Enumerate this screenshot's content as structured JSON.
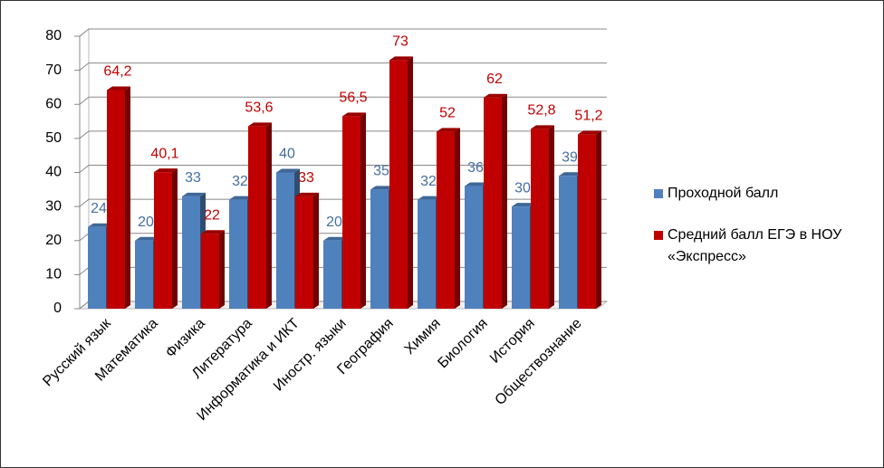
{
  "chart_data": {
    "type": "bar3d",
    "categories": [
      "Русский язык",
      "Математика",
      "Физика",
      "Литература",
      "Информатика и ИКТ",
      "Иностр. языки",
      "География",
      "Химия",
      "Биология",
      "История",
      "Обществознание"
    ],
    "series": [
      {
        "name": "Проходной балл",
        "color": "#4f81bd",
        "values": [
          24,
          20,
          33,
          32,
          40,
          20,
          35,
          32,
          36,
          30,
          39
        ]
      },
      {
        "name": "Средний балл ЕГЭ в НОУ «Экспресс»",
        "color": "#c00000",
        "values": [
          64.2,
          40.1,
          22,
          53.6,
          33,
          56.5,
          73,
          52,
          62,
          52.8,
          51.2
        ],
        "value_labels": [
          "64,2",
          "40,1",
          "22",
          "53,6",
          "33",
          "56,5",
          "73",
          "52",
          "62",
          "52,8",
          "51,2"
        ]
      }
    ],
    "ylim": [
      0,
      80
    ],
    "yticks": [
      0,
      10,
      20,
      30,
      40,
      50,
      60,
      70,
      80
    ],
    "grid": true,
    "legend": "right"
  }
}
